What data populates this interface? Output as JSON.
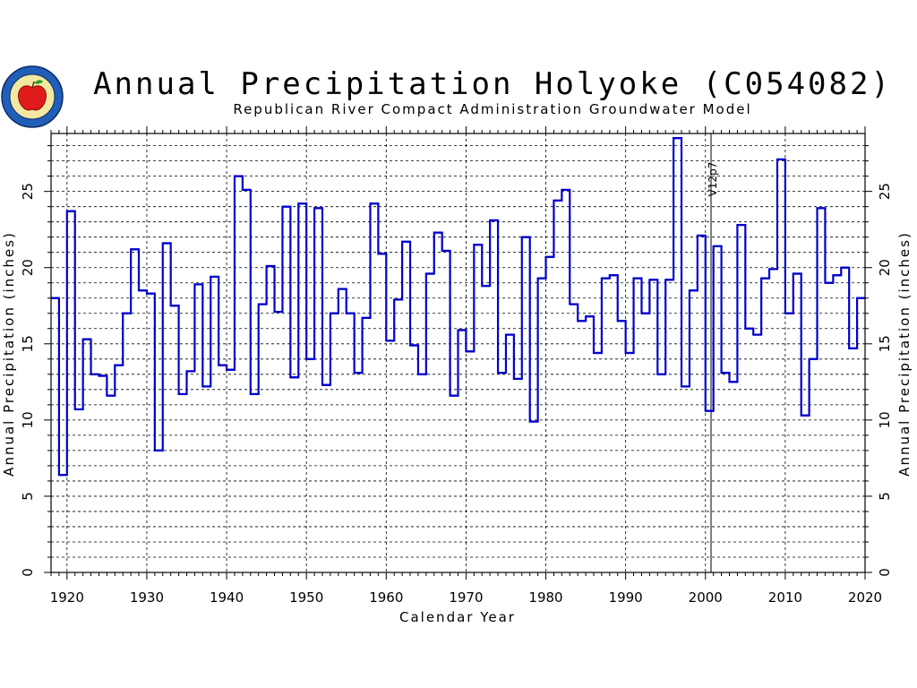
{
  "header": {
    "title": "Annual Precipitation Holyoke (C054082)",
    "subtitle": "Republican River Compact Administration Groundwater Model"
  },
  "logo": {
    "name": "apple-seal-logo",
    "ring_color": "#1f5fb8",
    "apple_color": "#e01b1b"
  },
  "colors": {
    "main_line": "#0000cc",
    "thin_line": "#3344cc",
    "grid": "#000000"
  },
  "chart_data": {
    "type": "line",
    "step": true,
    "title": "Annual Precipitation Holyoke (C054082)",
    "subtitle": "Republican River Compact Administration Groundwater Model",
    "xlabel": "Calendar Year",
    "ylabel_left": "Annual Precipitation (inches)",
    "ylabel_right": "Annual Precipitation (inches)",
    "xlim": [
      1918,
      2020
    ],
    "ylim": [
      0,
      28.8
    ],
    "xticks": [
      1920,
      1930,
      1940,
      1950,
      1960,
      1970,
      1980,
      1990,
      2000,
      2010,
      2020
    ],
    "yticks": [
      0,
      5,
      10,
      15,
      20,
      25
    ],
    "grid": true,
    "vertical_marker": {
      "x": 2000.7,
      "label": "V12p7"
    },
    "series": [
      {
        "years": [
          1918,
          1919,
          1920,
          1921,
          1922,
          1923,
          1924,
          1925,
          1926,
          1927,
          1928,
          1929,
          1930,
          1931,
          1932,
          1933,
          1934,
          1935,
          1936,
          1937,
          1938,
          1939,
          1940,
          1941,
          1942,
          1943,
          1944,
          1945,
          1946,
          1947,
          1948,
          1949,
          1950,
          1951,
          1952,
          1953,
          1954,
          1955,
          1956,
          1957,
          1958,
          1959,
          1960,
          1961,
          1962,
          1963,
          1964,
          1965,
          1966,
          1967,
          1968,
          1969,
          1970,
          1971,
          1972,
          1973,
          1974,
          1975,
          1976,
          1977,
          1978,
          1979,
          1980,
          1981,
          1982,
          1983,
          1984,
          1985,
          1986,
          1987,
          1988,
          1989,
          1990,
          1991,
          1992,
          1993,
          1994,
          1995,
          1996,
          1997,
          1998,
          1999,
          2000,
          2001,
          2002,
          2003,
          2004,
          2005,
          2006,
          2007,
          2008,
          2009,
          2010,
          2011,
          2012,
          2013,
          2014,
          2015,
          2016,
          2017,
          2018,
          2019
        ],
        "values": [
          18.0,
          6.4,
          23.7,
          10.7,
          15.3,
          13.0,
          12.9,
          11.6,
          13.6,
          17.0,
          21.2,
          18.5,
          18.3,
          8.0,
          21.6,
          17.5,
          11.7,
          13.2,
          18.9,
          12.2,
          19.4,
          13.6,
          13.3,
          26.0,
          25.1,
          11.7,
          17.6,
          20.1,
          17.1,
          24.0,
          12.8,
          24.2,
          14.0,
          23.9,
          12.3,
          17.0,
          18.6,
          17.0,
          13.1,
          16.7,
          24.2,
          20.9,
          15.2,
          17.9,
          21.7,
          14.9,
          13.0,
          19.6,
          22.3,
          21.1,
          11.6,
          15.9,
          14.5,
          21.5,
          18.8,
          23.1,
          13.1,
          15.6,
          12.7,
          22.0,
          9.9,
          19.3,
          20.7,
          24.4,
          25.1,
          17.6,
          16.5,
          16.8,
          14.4,
          19.3,
          19.5,
          16.5,
          14.4,
          19.3,
          17.0,
          19.2,
          13.0,
          19.2,
          28.5,
          12.2,
          18.5,
          22.1,
          10.6,
          21.4,
          13.1,
          12.5,
          22.8,
          16.0,
          15.6,
          19.3,
          19.9,
          27.1,
          17.0,
          19.6,
          10.3,
          14.0,
          23.9,
          19.0,
          19.5,
          20.0,
          14.7,
          18.0
        ]
      }
    ]
  }
}
